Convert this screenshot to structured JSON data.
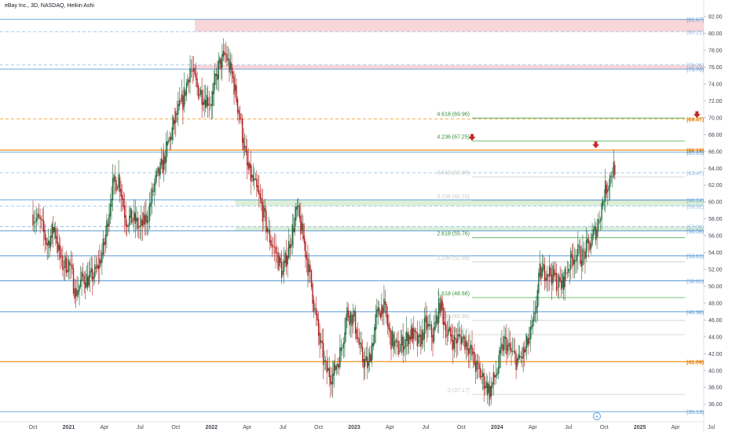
{
  "header": {
    "title": "eBay Inc., 3D, NASDAQ, Heikin Ashi"
  },
  "colors": {
    "up": "#26a69a",
    "up_dark": "#1e6b3e",
    "down": "#b22222",
    "blue_line": "#5b9bd5",
    "orange_line": "#f59d2a",
    "fib_green": "#4caf50",
    "zone_red": "#f8cfd4",
    "zone_green": "#d6ecd2",
    "arrow": "#c62828",
    "grid": "#e0e3eb"
  },
  "icons": {
    "goto_realtime": "plus-circle-icon",
    "target_marker": "down-arrow-icon"
  },
  "chart_data": {
    "type": "candlestick",
    "title": "eBay Inc., 3D, NASDAQ, Heikin Ashi",
    "xlim": [
      0,
      60.5
    ],
    "ylim": [
      34.3,
      83.0
    ],
    "x_ticks": [
      {
        "m": 0,
        "label": "Oct"
      },
      {
        "m": 3,
        "label": "2021"
      },
      {
        "m": 6,
        "label": "Apr"
      },
      {
        "m": 9,
        "label": "Jul"
      },
      {
        "m": 12,
        "label": "Oct"
      },
      {
        "m": 15,
        "label": "2022"
      },
      {
        "m": 18,
        "label": "Apr"
      },
      {
        "m": 21,
        "label": "Jul"
      },
      {
        "m": 24,
        "label": "Oct"
      },
      {
        "m": 27,
        "label": "2023"
      },
      {
        "m": 30,
        "label": "Apr"
      },
      {
        "m": 33,
        "label": "Jul"
      },
      {
        "m": 36,
        "label": "Oct"
      },
      {
        "m": 39,
        "label": "2024"
      },
      {
        "m": 42,
        "label": "Apr"
      },
      {
        "m": 45,
        "label": "Jul"
      },
      {
        "m": 48,
        "label": "Oct"
      },
      {
        "m": 51,
        "label": "2025"
      },
      {
        "m": 54,
        "label": "Apr"
      },
      {
        "m": 57,
        "label": "Jul"
      }
    ],
    "y_ticks": [
      "36.00",
      "38.00",
      "40.00",
      "42.00",
      "44.00",
      "46.00",
      "48.00",
      "50.00",
      "52.00",
      "54.00",
      "56.00",
      "58.00",
      "60.00",
      "62.00",
      "64.00",
      "66.00",
      "68.00",
      "70.00",
      "72.00",
      "74.00",
      "76.00",
      "78.00",
      "80.00",
      "82.00"
    ],
    "zones": [
      {
        "from_m": 13.6,
        "y1": 80.21,
        "y2": 81.67,
        "color": "zone_red"
      },
      {
        "from_m": 13.6,
        "y1": 75.76,
        "y2": 76.26,
        "color": "zone_red"
      },
      {
        "from_m": 17.0,
        "y1": 59.52,
        "y2": 60.24,
        "color": "zone_green"
      },
      {
        "from_m": 17.0,
        "y1": 56.58,
        "y2": 57.08,
        "color": "zone_green"
      }
    ],
    "levels": [
      {
        "y": 81.67,
        "label": "(81.67)",
        "style": "solid-blue"
      },
      {
        "y": 80.21,
        "label": "(80.21)",
        "style": "dashed-blue"
      },
      {
        "y": 76.26,
        "label": "(76.26)",
        "style": "dashed-blue"
      },
      {
        "y": 75.76,
        "label": "(75.76)",
        "style": "solid-blue"
      },
      {
        "y": 69.87,
        "label": "(69.87)",
        "style": "dashed-orange"
      },
      {
        "y": 66.16,
        "label": "(66.16)",
        "style": "solid-orange"
      },
      {
        "y": 65.91,
        "label": "(65.91)",
        "style": "solid-blue"
      },
      {
        "y": 63.47,
        "label": "(63.47)",
        "style": "dashed-blue"
      },
      {
        "y": 60.24,
        "label": "(60.24)",
        "style": "solid-blue"
      },
      {
        "y": 59.52,
        "label": "(59.52)",
        "style": "dashed-blue"
      },
      {
        "y": 56.58,
        "label": "(56.58)",
        "style": "solid-blue"
      },
      {
        "y": 57.08,
        "label": "(57.08)",
        "style": "dashed-blue"
      },
      {
        "y": 53.61,
        "label": "(53.61)",
        "style": "solid-blue"
      },
      {
        "y": 50.65,
        "label": "(50.65)",
        "style": "solid-blue"
      },
      {
        "y": 46.98,
        "label": "(46.98)",
        "style": "solid-blue"
      },
      {
        "y": 41.06,
        "label": "(41.06)",
        "style": "solid-orange"
      },
      {
        "y": 35.13,
        "label": "(35.13)",
        "style": "solid-blue"
      }
    ],
    "fib_levels": [
      {
        "y": 69.96,
        "label": "4.618 (69.96)",
        "color": "fib_green"
      },
      {
        "y": 67.25,
        "label": "4.236 (67.25)",
        "color": "fib_green"
      },
      {
        "y": 62.98,
        "label": "3.618 (62.98)",
        "color": "faded"
      },
      {
        "y": 60.15,
        "label": "3.236 (60.15)",
        "color": "faded"
      },
      {
        "y": 55.76,
        "label": "2.618 (55.76)",
        "color": "fib_green"
      },
      {
        "y": 52.88,
        "label": "2.236 (52.88)",
        "color": "faded"
      },
      {
        "y": 48.66,
        "label": "1.618 (48.66)",
        "color": "fib_green"
      },
      {
        "y": 45.95,
        "label": "1.236 (45.95)",
        "color": "faded"
      },
      {
        "y": 44.27,
        "label": "1 (44.27)",
        "color": "faded"
      },
      {
        "y": 37.17,
        "label": "0 (37.17)",
        "color": "faded"
      }
    ],
    "arrows": [
      {
        "m": 36.9,
        "y": 67.6
      },
      {
        "m": 47.3,
        "y": 66.7
      },
      {
        "m": 55.8,
        "y": 70.3
      }
    ],
    "path": [
      [
        0.0,
        58.5
      ],
      [
        0.6,
        57.5
      ],
      [
        1.2,
        55.0
      ],
      [
        1.8,
        57.0
      ],
      [
        2.4,
        52.5
      ],
      [
        3.0,
        52.8
      ],
      [
        3.6,
        49.2
      ],
      [
        4.2,
        51.0
      ],
      [
        4.8,
        50.8
      ],
      [
        5.4,
        52.0
      ],
      [
        6.0,
        55.0
      ],
      [
        6.6,
        61.5
      ],
      [
        7.2,
        63.0
      ],
      [
        7.8,
        58.0
      ],
      [
        8.4,
        58.0
      ],
      [
        9.0,
        56.8
      ],
      [
        9.6,
        58.2
      ],
      [
        10.2,
        62.0
      ],
      [
        10.8,
        64.0
      ],
      [
        11.4,
        67.0
      ],
      [
        12.0,
        70.0
      ],
      [
        12.6,
        72.0
      ],
      [
        13.2,
        76.0
      ],
      [
        13.8,
        73.5
      ],
      [
        14.4,
        72.5
      ],
      [
        15.0,
        72.0
      ],
      [
        15.6,
        76.0
      ],
      [
        16.2,
        77.5
      ],
      [
        16.8,
        74.5
      ],
      [
        17.4,
        70.0
      ],
      [
        18.0,
        64.0
      ],
      [
        18.6,
        62.0
      ],
      [
        19.2,
        59.5
      ],
      [
        19.8,
        56.0
      ],
      [
        20.4,
        54.0
      ],
      [
        21.0,
        51.5
      ],
      [
        21.6,
        55.5
      ],
      [
        22.2,
        59.0
      ],
      [
        22.8,
        55.0
      ],
      [
        23.4,
        50.0
      ],
      [
        24.0,
        44.0
      ],
      [
        24.6,
        40.0
      ],
      [
        25.2,
        39.5
      ],
      [
        25.8,
        42.0
      ],
      [
        26.4,
        47.0
      ],
      [
        27.0,
        46.0
      ],
      [
        27.6,
        41.5
      ],
      [
        28.2,
        40.5
      ],
      [
        28.8,
        46.0
      ],
      [
        29.4,
        48.0
      ],
      [
        30.0,
        44.0
      ],
      [
        30.6,
        42.5
      ],
      [
        31.2,
        43.5
      ],
      [
        31.8,
        44.5
      ],
      [
        32.4,
        43.0
      ],
      [
        33.0,
        45.5
      ],
      [
        33.6,
        44.0
      ],
      [
        34.2,
        48.0
      ],
      [
        34.8,
        44.5
      ],
      [
        35.4,
        43.5
      ],
      [
        36.0,
        44.0
      ],
      [
        36.6,
        43.0
      ],
      [
        37.2,
        40.5
      ],
      [
        37.8,
        39.0
      ],
      [
        38.4,
        37.5
      ],
      [
        39.0,
        40.0
      ],
      [
        39.6,
        43.5
      ],
      [
        40.2,
        42.0
      ],
      [
        40.8,
        41.0
      ],
      [
        41.4,
        42.5
      ],
      [
        42.0,
        45.0
      ],
      [
        42.6,
        51.5
      ],
      [
        43.2,
        52.0
      ],
      [
        43.8,
        51.0
      ],
      [
        44.4,
        50.0
      ],
      [
        45.0,
        52.5
      ],
      [
        45.6,
        54.0
      ],
      [
        46.2,
        53.5
      ],
      [
        46.8,
        55.0
      ],
      [
        47.4,
        57.0
      ],
      [
        48.0,
        61.0
      ],
      [
        48.6,
        63.5
      ],
      [
        49.0,
        64.5
      ]
    ]
  },
  "nav": {
    "goto_button_label": "+"
  }
}
